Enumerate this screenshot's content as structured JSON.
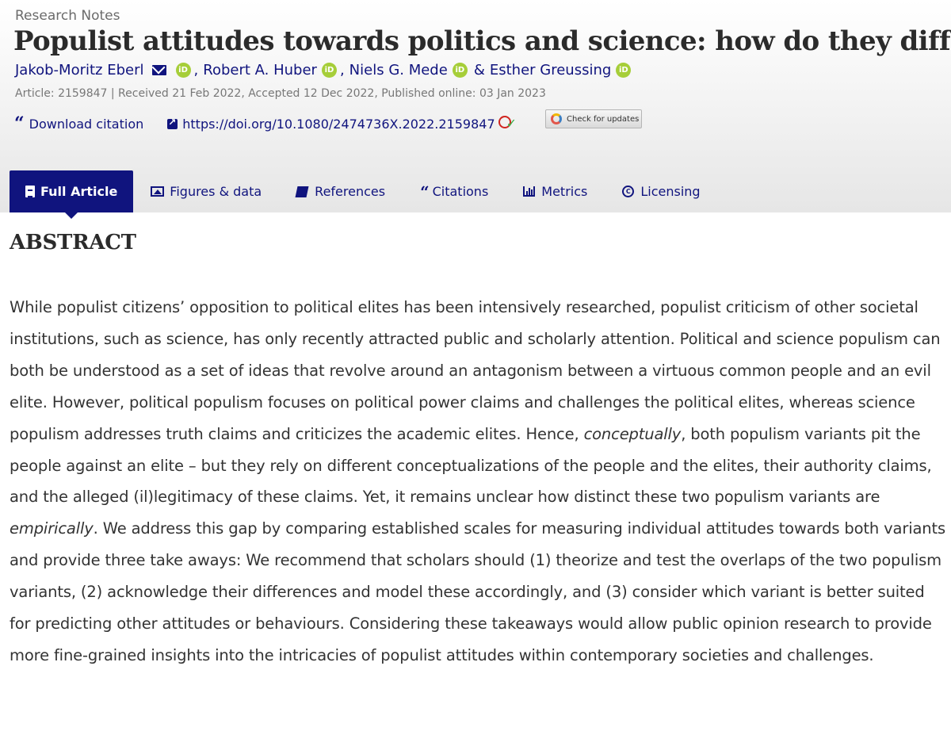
{
  "section_label": "Research Notes",
  "title": "Populist attitudes towards politics and science: how do they differ?",
  "authors": [
    {
      "name": "Jakob-Moritz Eberl",
      "has_email": true
    },
    {
      "name": "Robert A. Huber"
    },
    {
      "name": "Niels G. Mede"
    },
    {
      "name": "Esther Greussing"
    }
  ],
  "author_separators": [
    ",",
    ",",
    "&"
  ],
  "icons": {
    "email": "mail-icon",
    "orcid": "orcid-icon",
    "orcid_text": "iD"
  },
  "meta": "Article: 2159847 | Received 21 Feb 2022, Accepted 12 Dec 2022, Published online: 03 Jan 2023",
  "links": {
    "download_citation": "Download citation",
    "doi": "https://doi.org/10.1080/2474736X.2022.2159847",
    "check_updates": "Check for updates"
  },
  "tabs": [
    {
      "label": "Full Article",
      "icon": "document-icon",
      "active": true
    },
    {
      "label": "Figures & data",
      "icon": "image-icon",
      "active": false
    },
    {
      "label": "References",
      "icon": "book-icon",
      "active": false
    },
    {
      "label": "Citations",
      "icon": "quote-icon",
      "active": false
    },
    {
      "label": "Metrics",
      "icon": "bar-chart-icon",
      "active": false
    },
    {
      "label": "Licensing",
      "icon": "copyright-icon",
      "active": false
    }
  ],
  "colors": {
    "brand": "#10147e",
    "orcid": "#a6ce39"
  },
  "abstract": {
    "heading": "ABSTRACT",
    "part1": "While populist citizens’ opposition to political elites has been intensively researched, populist criticism of other societal institutions, such as science, has only recently attracted public and scholarly attention. Political and science populism can both be understood as a set of ideas that revolve around an antagonism between a virtuous common people and an evil elite. However, political populism focuses on political power claims and challenges the political elites, whereas science populism addresses truth claims and criticizes the academic elites. Hence, ",
    "em1": "conceptually",
    "part2": ", both populism variants pit the people against an elite – but they rely on different conceptualizations of the people and the elites, their authority claims, and the alleged (il)legitimacy of these claims. Yet, it remains unclear how distinct these two populism variants are ",
    "em2": "empirically",
    "part3": ". We address this gap by comparing established scales for measuring individual attitudes towards both variants and provide three take aways: We recommend that scholars should (1) theorize and test the overlaps of the two populism variants, (2) acknowledge their differences and model these accordingly, and (3) consider which variant is better suited for predicting other attitudes or behaviours. Considering these takeaways would allow public opinion research to provide more fine-grained insights into the intricacies of populist attitudes within contemporary societies and challenges."
  }
}
